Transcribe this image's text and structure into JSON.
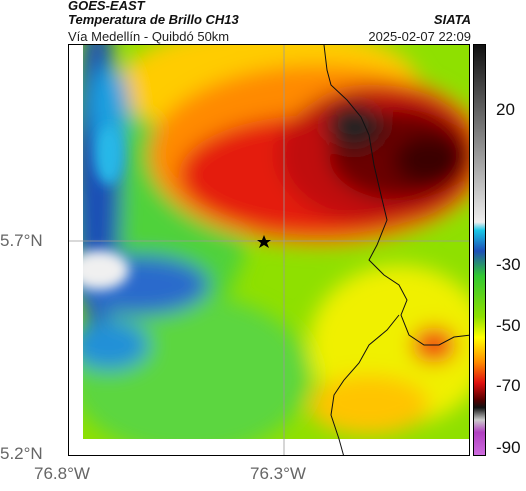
{
  "header": {
    "satellite": "GOES-EAST",
    "product": "Temperatura de Brillo CH13",
    "route": "Vía Medellín - Quibdó 50km",
    "agency": "SIATA",
    "datetime": "2025-02-07 22:09"
  },
  "axes": {
    "lat_labels": [
      "5.7°N",
      "5.2°N"
    ],
    "lon_labels": [
      "76.8°W",
      "76.3°W"
    ]
  },
  "colorbar": {
    "ticks": [
      "20",
      "-30",
      "-50",
      "-70",
      "-90"
    ],
    "colors": {
      "warm_dark": "#111111",
      "gray": "#b8b8b8",
      "cyan": "#19c7e6",
      "blue": "#1e4fb8",
      "green": "#32c832",
      "yellow": "#ffff00",
      "orange": "#ff8c00",
      "red": "#e01010",
      "dark_red": "#5a0000",
      "magenta": "#b040c0"
    }
  },
  "map": {
    "marker": "star-icon"
  }
}
